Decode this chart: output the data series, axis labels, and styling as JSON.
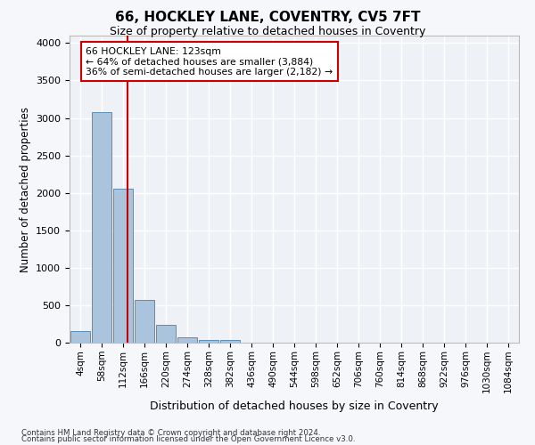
{
  "title": "66, HOCKLEY LANE, COVENTRY, CV5 7FT",
  "subtitle": "Size of property relative to detached houses in Coventry",
  "xlabel": "Distribution of detached houses by size in Coventry",
  "ylabel": "Number of detached properties",
  "bin_labels": [
    "4sqm",
    "58sqm",
    "112sqm",
    "166sqm",
    "220sqm",
    "274sqm",
    "328sqm",
    "382sqm",
    "436sqm",
    "490sqm",
    "544sqm",
    "598sqm",
    "652sqm",
    "706sqm",
    "760sqm",
    "814sqm",
    "868sqm",
    "922sqm",
    "976sqm",
    "1030sqm",
    "1084sqm"
  ],
  "bar_heights": [
    150,
    3075,
    2060,
    565,
    240,
    70,
    40,
    40,
    0,
    0,
    0,
    0,
    0,
    0,
    0,
    0,
    0,
    0,
    0,
    0,
    0
  ],
  "bar_color": "#aac4de",
  "bar_edge_color": "#5b8db8",
  "background_color": "#eef2f7",
  "grid_color": "#ffffff",
  "property_label": "66 HOCKLEY LANE: 123sqm",
  "annotation_line1": "← 64% of detached houses are smaller (3,884)",
  "annotation_line2": "36% of semi-detached houses are larger (2,182) →",
  "vline_color": "#cc0000",
  "ylim": [
    0,
    4100
  ],
  "footnote1": "Contains HM Land Registry data © Crown copyright and database right 2024.",
  "footnote2": "Contains public sector information licensed under the Open Government Licence v3.0."
}
